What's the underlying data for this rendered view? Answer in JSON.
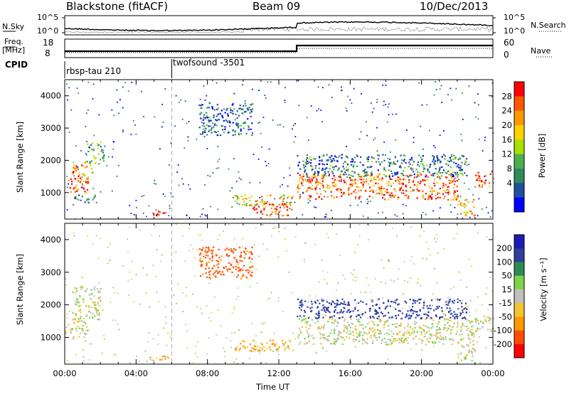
{
  "header": {
    "station": "Blackstone (fitACF)",
    "beam": "Beam 09",
    "date": "10/Dec/2013"
  },
  "noise_panel": {
    "left_label": "N.Sky",
    "right_label": "N.Search",
    "y_ticks": [
      "10^5",
      "10^0"
    ],
    "right_ticks": [
      "10^5",
      "10^0"
    ]
  },
  "freq_panel": {
    "left_label_line1": "Freq.",
    "left_label_line2": "[MHz]",
    "right_label": "Nave",
    "y_ticks": [
      "18",
      "8"
    ],
    "right_ticks": [
      "60",
      "0"
    ]
  },
  "cpid": {
    "label": "CPID",
    "programs": [
      {
        "name": "rbsp-tau 210",
        "start_hour": 0
      },
      {
        "name": "twofsound -3501",
        "start_hour": 6
      }
    ]
  },
  "colors": {
    "power_scale": [
      "#0000ff",
      "#1f4fa0",
      "#2e8b57",
      "#4caf50",
      "#a8e000",
      "#ffd200",
      "#ff9900",
      "#ff5500",
      "#ff0000"
    ],
    "velocity_scale": [
      "#1c1cb4",
      "#2e3f9e",
      "#2e8b57",
      "#7fd34a",
      "#c0c0c0",
      "#f4c430",
      "#ff9900",
      "#ff4d00",
      "#ff0000"
    ]
  },
  "chart_data": [
    {
      "type": "heatmap",
      "name": "power",
      "title": "",
      "ylabel": "Slant Range [km]",
      "xlabel": "",
      "xlim": [
        "00:00",
        "24:00"
      ],
      "ylim": [
        180,
        4500
      ],
      "y_ticks": [
        "4000",
        "3000",
        "2000",
        "1000"
      ],
      "colorbar": {
        "label": "Power [dB]",
        "ticks": [
          "28",
          "24",
          "20",
          "16",
          "12",
          "8",
          "4"
        ],
        "range": [
          0,
          30
        ]
      },
      "regions": [
        {
          "t0": 0.0,
          "t1": 1.3,
          "r0": 1000,
          "r1": 1500,
          "level": 26
        },
        {
          "t0": 0.4,
          "t1": 1.6,
          "r0": 1500,
          "r1": 2000,
          "level": 22
        },
        {
          "t0": 1.2,
          "t1": 2.2,
          "r0": 1900,
          "r1": 2600,
          "level": 12
        },
        {
          "t0": 0.5,
          "t1": 1.7,
          "r0": 700,
          "r1": 950,
          "level": 10
        },
        {
          "t0": 4.5,
          "t1": 5.8,
          "r0": 300,
          "r1": 450,
          "level": 26
        },
        {
          "t0": 7.5,
          "t1": 10.5,
          "r0": 2800,
          "r1": 3800,
          "level": 6
        },
        {
          "t0": 9.5,
          "t1": 12.8,
          "r0": 600,
          "r1": 950,
          "level": 18
        },
        {
          "t0": 10.5,
          "t1": 12.8,
          "r0": 300,
          "r1": 700,
          "level": 26
        },
        {
          "t0": 13.0,
          "t1": 22.0,
          "r0": 800,
          "r1": 1600,
          "level": 24
        },
        {
          "t0": 13.0,
          "t1": 22.5,
          "r0": 1500,
          "r1": 2200,
          "level": 8
        },
        {
          "t0": 22.0,
          "t1": 23.0,
          "r0": 300,
          "r1": 800,
          "level": 20
        },
        {
          "t0": 23.0,
          "t1": 24.0,
          "r0": 1200,
          "r1": 1700,
          "level": 26
        }
      ]
    },
    {
      "type": "heatmap",
      "name": "velocity",
      "title": "",
      "ylabel": "Slant Range [km]",
      "xlabel": "Time UT",
      "xlim": [
        "00:00",
        "24:00"
      ],
      "ylim": [
        180,
        4500
      ],
      "x_ticks": [
        "00:00",
        "04:00",
        "08:00",
        "12:00",
        "16:00",
        "20:00",
        "00:00"
      ],
      "y_ticks": [
        "4000",
        "3000",
        "2000",
        "1000"
      ],
      "colorbar": {
        "label": "Velocity [m s⁻¹]",
        "ticks": [
          "200",
          "100",
          "50",
          "15",
          "-15",
          "-50",
          "-100",
          "-200"
        ],
        "range": [
          -250,
          250
        ]
      },
      "regions": [
        {
          "t0": 0.0,
          "t1": 1.3,
          "r0": 1000,
          "r1": 1500,
          "level": 0
        },
        {
          "t0": 0.4,
          "t1": 2.0,
          "r0": 1500,
          "r1": 2600,
          "level": 0
        },
        {
          "t0": 4.5,
          "t1": 5.8,
          "r0": 300,
          "r1": 450,
          "level": -40
        },
        {
          "t0": 7.5,
          "t1": 10.5,
          "r0": 2800,
          "r1": 3800,
          "level": -120
        },
        {
          "t0": 9.5,
          "t1": 12.8,
          "r0": 600,
          "r1": 950,
          "level": -60
        },
        {
          "t0": 13.0,
          "t1": 23.0,
          "r0": 800,
          "r1": 1600,
          "level": 0
        },
        {
          "t0": 13.0,
          "t1": 22.5,
          "r0": 1600,
          "r1": 2200,
          "level": 150
        },
        {
          "t0": 22.0,
          "t1": 23.0,
          "r0": 300,
          "r1": 800,
          "level": 0
        },
        {
          "t0": 23.0,
          "t1": 24.0,
          "r0": 1200,
          "r1": 1700,
          "level": 0
        }
      ]
    }
  ]
}
